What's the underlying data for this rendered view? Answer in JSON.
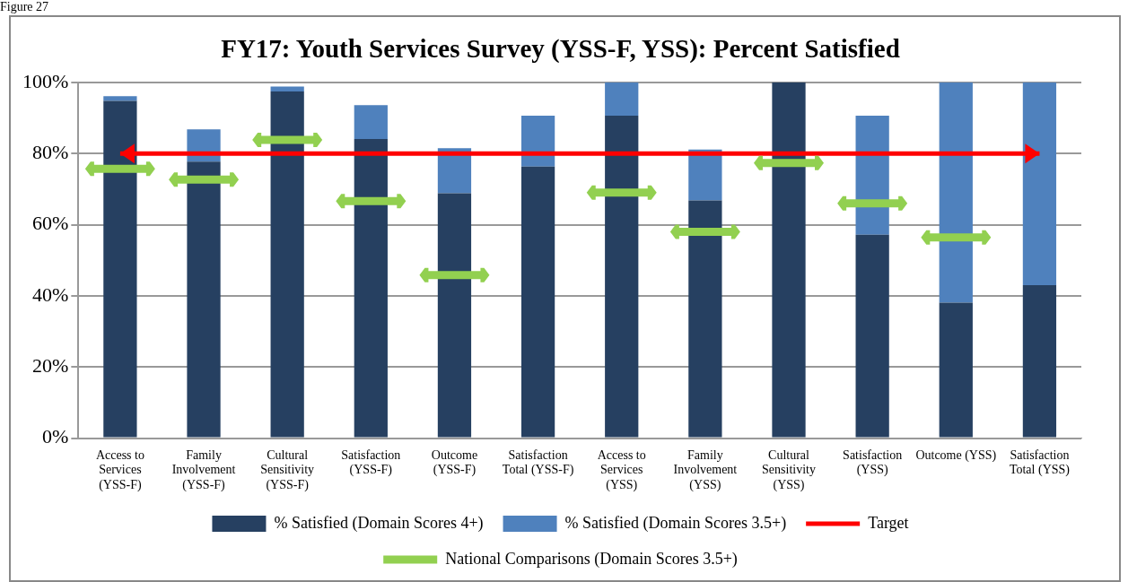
{
  "chart_data": {
    "type": "bar",
    "title": "FY17: Youth Services Survey (YSS-F, YSS): Percent Satisfied",
    "annotations": [
      "Figure 27"
    ],
    "categories": [
      "Access to Services (YSS-F)",
      "Family Involvement (YSS-F)",
      "Cultural Sensitivity (YSS-F)",
      "Satisfaction (YSS-F)",
      "Outcome (YSS-F)",
      "Satisfaction Total (YSS-F)",
      "Access to Services (YSS)",
      "Family Involvement (YSS)",
      "Cultural Sensitivity (YSS)",
      "Satisfaction (YSS)",
      "Outcome (YSS)",
      "Satisfaction Total (YSS)"
    ],
    "stacked": true,
    "series": [
      {
        "name": "% Satisfied (Domain Scores 4+)",
        "color": "#264061",
        "values": [
          94.8,
          77.7,
          97.4,
          84.1,
          68.8,
          76.3,
          90.6,
          66.8,
          100,
          57.2,
          38.1,
          43.0
        ]
      },
      {
        "name": "% Satisfied (Domain Scores 3.5+)",
        "color": "#4f81bd",
        "values": [
          1.3,
          9.1,
          1.4,
          9.5,
          12.7,
          14.3,
          9.4,
          14.3,
          0,
          33.4,
          61.9,
          57.0
        ]
      },
      {
        "name": "Target",
        "type": "line",
        "color": "#ff0000",
        "values": [
          80,
          80,
          80,
          80,
          80,
          80,
          80,
          80,
          80,
          80,
          80,
          80
        ]
      },
      {
        "name": "National Comparisons (Domain Scores 3.5+)",
        "type": "scatter",
        "color": "#92d050",
        "values": [
          75.7,
          72.7,
          83.8,
          66.6,
          45.8,
          null,
          69.0,
          58.0,
          77.3,
          66.0,
          56.4,
          null
        ]
      }
    ],
    "ylim": [
      0,
      100
    ],
    "yticks": [
      {
        "value": 0,
        "label": "0%"
      },
      {
        "value": 20,
        "label": "20%"
      },
      {
        "value": 40,
        "label": "40%"
      },
      {
        "value": 60,
        "label": "60%"
      },
      {
        "value": 80,
        "label": "80%"
      },
      {
        "value": 100,
        "label": "100%"
      }
    ],
    "grid": "y",
    "legend": "bottom"
  }
}
